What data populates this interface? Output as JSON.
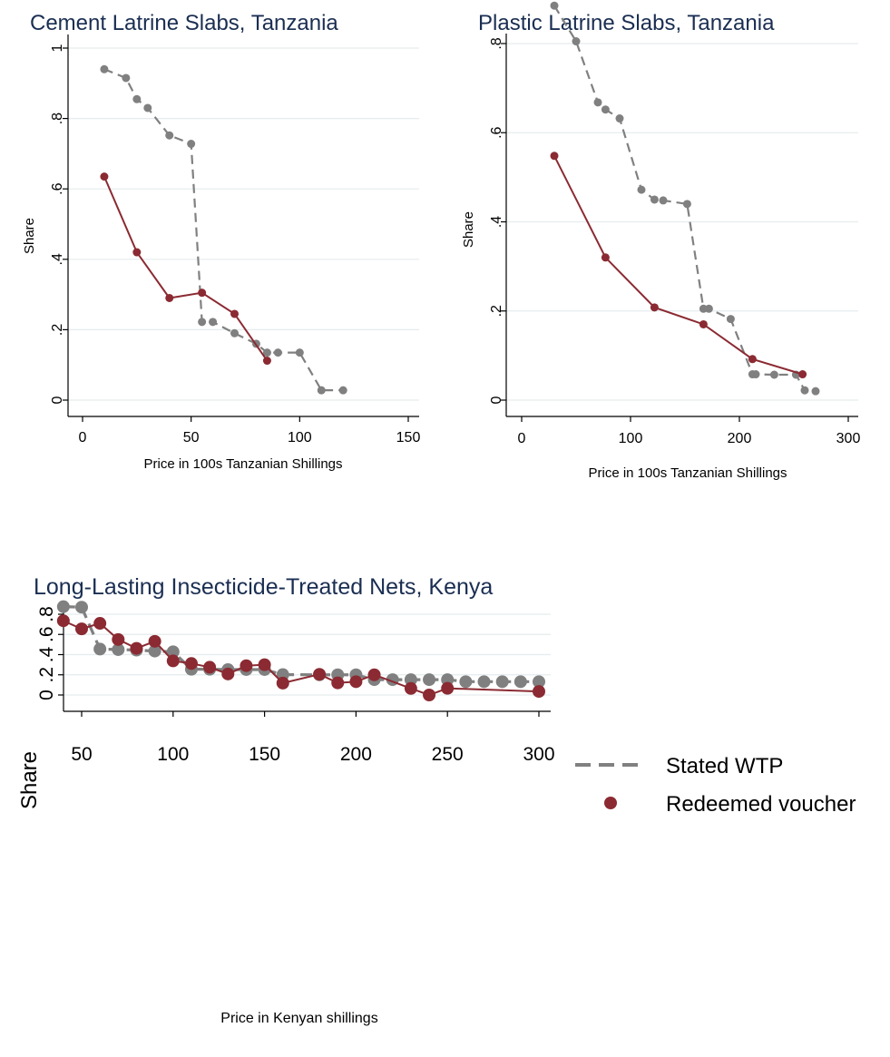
{
  "colors": {
    "stated": "#808080",
    "redeemed": "#8b2a32",
    "grid": "#e5ecee",
    "axis": "#000000",
    "title": "#1a2e52"
  },
  "legend": {
    "placement": "right",
    "items": [
      "Stated WTP",
      "Redeemed voucher"
    ]
  },
  "chart_data": [
    {
      "type": "line",
      "title": "Cement Latrine Slabs, Tanzania",
      "xlabel": "Price in 100s Tanzanian Shillings",
      "ylabel": "Share",
      "xlim": [
        0,
        150
      ],
      "ylim": [
        0,
        1
      ],
      "xticks": [
        0,
        50,
        100,
        150
      ],
      "xtick_labels": [
        "0",
        "50",
        "100",
        "150"
      ],
      "yticks": [
        0,
        0.2,
        0.4,
        0.6,
        0.8,
        1
      ],
      "ytick_labels": [
        "0",
        ".2",
        ".4",
        ".6",
        ".8",
        "1"
      ],
      "grid": true,
      "series": [
        {
          "name": "Stated WTP",
          "style": "dashed",
          "x": [
            10,
            20,
            25,
            30,
            40,
            50,
            55,
            60,
            70,
            80,
            85,
            90,
            100,
            110,
            120
          ],
          "y": [
            0.94,
            0.915,
            0.855,
            0.83,
            0.752,
            0.728,
            0.222,
            0.222,
            0.19,
            0.16,
            0.135,
            0.135,
            0.135,
            0.028,
            0.028
          ]
        },
        {
          "name": "Redeemed voucher",
          "style": "solid",
          "x": [
            10,
            25,
            40,
            55,
            70,
            85
          ],
          "y": [
            0.635,
            0.42,
            0.29,
            0.305,
            0.245,
            0.112
          ]
        }
      ]
    },
    {
      "type": "line",
      "title": "Plastic Latrine Slabs, Tanzania",
      "xlabel": "Price in 100s Tanzanian Shillings",
      "ylabel": "Share",
      "xlim": [
        0,
        300
      ],
      "ylim": [
        0,
        0.9
      ],
      "xticks": [
        0,
        100,
        200,
        300
      ],
      "xtick_labels": [
        "0",
        "100",
        "200",
        "300"
      ],
      "yticks": [
        0,
        0.2,
        0.4,
        0.6,
        0.8
      ],
      "ytick_labels": [
        "0",
        ".2",
        ".4",
        ".6",
        ".8"
      ],
      "grid": true,
      "series": [
        {
          "name": "Stated WTP",
          "style": "dashed",
          "x": [
            30,
            50,
            70,
            77,
            90,
            110,
            122,
            130,
            152,
            167,
            172,
            192,
            212,
            215,
            232,
            252,
            260,
            270
          ],
          "y": [
            0.885,
            0.805,
            0.668,
            0.652,
            0.632,
            0.472,
            0.45,
            0.448,
            0.44,
            0.205,
            0.205,
            0.182,
            0.058,
            0.058,
            0.057,
            0.057,
            0.022,
            0.02
          ]
        },
        {
          "name": "Redeemed voucher",
          "style": "solid",
          "x": [
            30,
            77,
            122,
            167,
            212,
            258
          ],
          "y": [
            0.548,
            0.32,
            0.208,
            0.17,
            0.092,
            0.058
          ]
        }
      ]
    },
    {
      "type": "line",
      "title": "Long-Lasting Insecticide-Treated Nets, Kenya",
      "xlabel": "Price in Kenyan shillings",
      "ylabel": "Share",
      "xlim": [
        40,
        300
      ],
      "ylim": [
        0,
        0.9
      ],
      "xticks": [
        50,
        100,
        150,
        200,
        250,
        300
      ],
      "xtick_labels": [
        "50",
        "100",
        "150",
        "200",
        "250",
        "300"
      ],
      "yticks": [
        0,
        0.2,
        0.4,
        0.6,
        0.8
      ],
      "ytick_labels": [
        "0",
        ".2",
        ".4",
        ".6",
        ".8"
      ],
      "grid": true,
      "series": [
        {
          "name": "Stated WTP",
          "style": "dashed",
          "x": [
            40,
            50,
            60,
            70,
            80,
            90,
            100,
            110,
            120,
            130,
            140,
            150,
            160,
            180,
            190,
            200,
            210,
            220,
            230,
            240,
            250,
            260,
            270,
            280,
            290,
            300
          ],
          "y": [
            0.875,
            0.87,
            0.455,
            0.45,
            0.445,
            0.435,
            0.428,
            0.255,
            0.255,
            0.252,
            0.252,
            0.252,
            0.202,
            0.2,
            0.2,
            0.2,
            0.152,
            0.152,
            0.152,
            0.152,
            0.152,
            0.132,
            0.132,
            0.132,
            0.132,
            0.132
          ]
        },
        {
          "name": "Redeemed voucher",
          "style": "solid",
          "x": [
            40,
            50,
            60,
            70,
            80,
            90,
            100,
            110,
            120,
            130,
            140,
            150,
            160,
            180,
            190,
            200,
            210,
            230,
            240,
            250,
            300
          ],
          "y": [
            0.735,
            0.655,
            0.71,
            0.55,
            0.462,
            0.532,
            0.338,
            0.312,
            0.275,
            0.208,
            0.29,
            0.3,
            0.118,
            0.205,
            0.12,
            0.132,
            0.2,
            0.065,
            0.0,
            0.066,
            0.035
          ]
        }
      ]
    }
  ]
}
